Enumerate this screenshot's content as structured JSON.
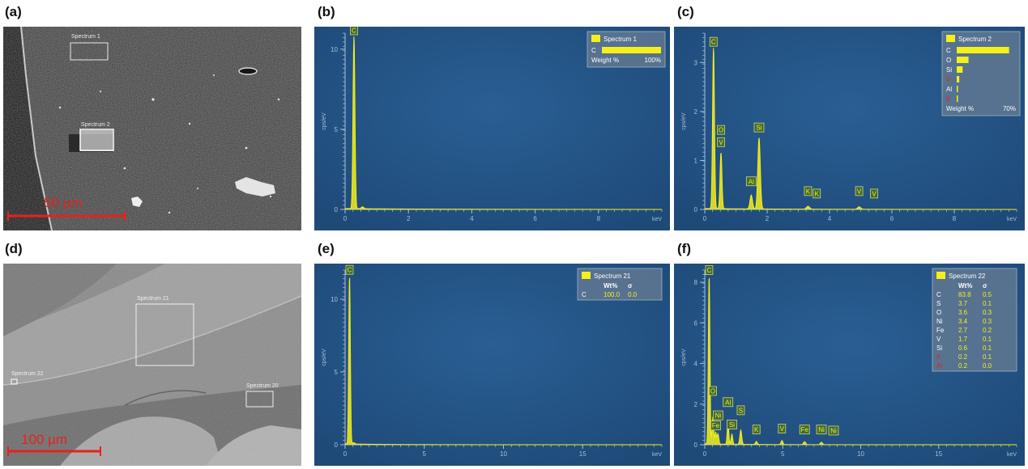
{
  "panels": {
    "a": {
      "label": "(a)",
      "boxes": [
        "Spectrum 1",
        "Spectrum 2"
      ],
      "scalebar": "50 µm"
    },
    "b": {
      "label": "(b)"
    },
    "c": {
      "label": "(c)"
    },
    "d": {
      "label": "(d)",
      "boxes": [
        "Spectrum 21",
        "Spectrum 22",
        "Spectrum 20"
      ],
      "scalebar": "100 µm"
    },
    "e": {
      "label": "(e)"
    },
    "f": {
      "label": "(f)"
    }
  },
  "colors": {
    "plot_bg": "#1e4a78",
    "trace": "#f5ef1c",
    "axis_text": "#a9bfd6",
    "red": "#e8211b"
  },
  "chart_data": [
    {
      "panel": "b",
      "type": "line",
      "xlabel": "keV",
      "ylabel": "cps/eV",
      "xlim": [
        0,
        10
      ],
      "ylim": [
        0,
        11
      ],
      "xticks": [
        0,
        2,
        4,
        6,
        8
      ],
      "yticks": [
        0,
        5,
        10
      ],
      "peaks": [
        {
          "x": 0.28,
          "y": 10.8,
          "w": 0.03
        },
        {
          "x": 0.55,
          "y": 0.12,
          "w": 0.04
        }
      ],
      "peak_labels": [
        {
          "text": "C",
          "x": 0.28,
          "y": 10.8
        }
      ],
      "legend": {
        "title": "Spectrum 1",
        "rows": [
          {
            "el": "C",
            "value": 100
          }
        ],
        "axis_label": "Weight %",
        "axis_max": "100%"
      }
    },
    {
      "panel": "c",
      "type": "line",
      "xlabel": "keV",
      "ylabel": "cps/eV",
      "xlim": [
        0,
        10
      ],
      "ylim": [
        0,
        3.6
      ],
      "xticks": [
        0,
        2,
        4,
        6,
        8
      ],
      "yticks": [
        0,
        1,
        2,
        3
      ],
      "peaks": [
        {
          "x": 0.28,
          "y": 3.3,
          "w": 0.03
        },
        {
          "x": 0.52,
          "y": 1.15,
          "w": 0.03
        },
        {
          "x": 1.49,
          "y": 0.28,
          "w": 0.04
        },
        {
          "x": 1.74,
          "y": 1.45,
          "w": 0.04
        },
        {
          "x": 3.31,
          "y": 0.06,
          "w": 0.05
        },
        {
          "x": 4.95,
          "y": 0.05,
          "w": 0.05
        }
      ],
      "peak_labels": [
        {
          "text": "C",
          "x": 0.28,
          "y": 3.3
        },
        {
          "text": "O",
          "x": 0.52,
          "y": 1.5
        },
        {
          "text": "V",
          "x": 0.52,
          "y": 1.25
        },
        {
          "text": "Si",
          "x": 1.74,
          "y": 1.55
        },
        {
          "text": "Al",
          "x": 1.49,
          "y": 0.45
        },
        {
          "text": "K",
          "x": 3.31,
          "y": 0.25
        },
        {
          "text": "K",
          "x": 3.59,
          "y": 0.2
        },
        {
          "text": "V",
          "x": 4.95,
          "y": 0.25
        },
        {
          "text": "V",
          "x": 5.43,
          "y": 0.2
        }
      ],
      "legend": {
        "title": "Spectrum 2",
        "rows": [
          {
            "el": "C",
            "value": 62
          },
          {
            "el": "O",
            "value": 14
          },
          {
            "el": "Si",
            "value": 7
          },
          {
            "el": "V",
            "value": 3,
            "red": true
          },
          {
            "el": "Al",
            "value": 1
          },
          {
            "el": "K",
            "value": 0.5,
            "red": true
          }
        ],
        "axis_label": "Weight %",
        "axis_max": "70%"
      }
    },
    {
      "panel": "e",
      "type": "line",
      "xlabel": "keV",
      "ylabel": "cps/eV",
      "xlim": [
        0,
        20
      ],
      "ylim": [
        0,
        12
      ],
      "xticks": [
        0,
        5,
        10,
        15
      ],
      "yticks": [
        0,
        5,
        10
      ],
      "peaks": [
        {
          "x": 0.28,
          "y": 11.6,
          "w": 0.05
        },
        {
          "x": 0.55,
          "y": 0.1,
          "w": 0.06
        }
      ],
      "peak_labels": [
        {
          "text": "C",
          "x": 0.28,
          "y": 11.6
        }
      ],
      "legend": {
        "title": "Spectrum 21",
        "head": [
          "Wt%",
          "σ"
        ],
        "rows": [
          {
            "el": "C",
            "wt": "100.0",
            "sig": "0.0"
          }
        ]
      }
    },
    {
      "panel": "f",
      "type": "line",
      "xlabel": "keV",
      "ylabel": "cps/eV",
      "xlim": [
        0,
        20
      ],
      "ylim": [
        0,
        8.6
      ],
      "xticks": [
        0,
        5,
        10,
        15
      ],
      "yticks": [
        0,
        2,
        4,
        6,
        8
      ],
      "peaks": [
        {
          "x": 0.28,
          "y": 8.3,
          "w": 0.05
        },
        {
          "x": 0.52,
          "y": 1.3,
          "w": 0.05
        },
        {
          "x": 0.7,
          "y": 0.6,
          "w": 0.05
        },
        {
          "x": 0.85,
          "y": 0.5,
          "w": 0.05
        },
        {
          "x": 1.49,
          "y": 1.1,
          "w": 0.05
        },
        {
          "x": 1.74,
          "y": 0.5,
          "w": 0.05
        },
        {
          "x": 2.31,
          "y": 0.7,
          "w": 0.06
        },
        {
          "x": 3.31,
          "y": 0.15,
          "w": 0.06
        },
        {
          "x": 4.95,
          "y": 0.2,
          "w": 0.06
        },
        {
          "x": 6.4,
          "y": 0.15,
          "w": 0.07
        },
        {
          "x": 7.48,
          "y": 0.12,
          "w": 0.07
        }
      ],
      "peak_labels": [
        {
          "text": "C",
          "x": 0.28,
          "y": 8.3
        },
        {
          "text": "O",
          "x": 0.52,
          "y": 2.35
        },
        {
          "text": "Al",
          "x": 1.49,
          "y": 1.8
        },
        {
          "text": "Ni",
          "x": 0.85,
          "y": 1.15
        },
        {
          "text": "S",
          "x": 2.31,
          "y": 1.4
        },
        {
          "text": "Fe",
          "x": 0.7,
          "y": 0.65
        },
        {
          "text": "Si",
          "x": 1.74,
          "y": 0.7
        },
        {
          "text": "K",
          "x": 3.31,
          "y": 0.45
        },
        {
          "text": "V",
          "x": 4.95,
          "y": 0.5
        },
        {
          "text": "Fe",
          "x": 6.4,
          "y": 0.45
        },
        {
          "text": "Ni",
          "x": 7.48,
          "y": 0.45
        },
        {
          "text": "Ni",
          "x": 8.26,
          "y": 0.4
        }
      ],
      "legend": {
        "title": "Spectrum 22",
        "head": [
          "Wt%",
          "σ"
        ],
        "rows": [
          {
            "el": "C",
            "wt": "83.8",
            "sig": "0.5"
          },
          {
            "el": "S",
            "wt": "3.7",
            "sig": "0.1"
          },
          {
            "el": "O",
            "wt": "3.6",
            "sig": "0.3"
          },
          {
            "el": "Ni",
            "wt": "3.4",
            "sig": "0.3"
          },
          {
            "el": "Fe",
            "wt": "2.7",
            "sig": "0.2"
          },
          {
            "el": "V",
            "wt": "1.7",
            "sig": "0.1"
          },
          {
            "el": "Si",
            "wt": "0.6",
            "sig": "0.1"
          },
          {
            "el": "K",
            "wt": "0.2",
            "sig": "0.1",
            "red": true
          },
          {
            "el": "Al",
            "wt": "0.2",
            "sig": "0.0",
            "red": true
          }
        ]
      }
    }
  ]
}
